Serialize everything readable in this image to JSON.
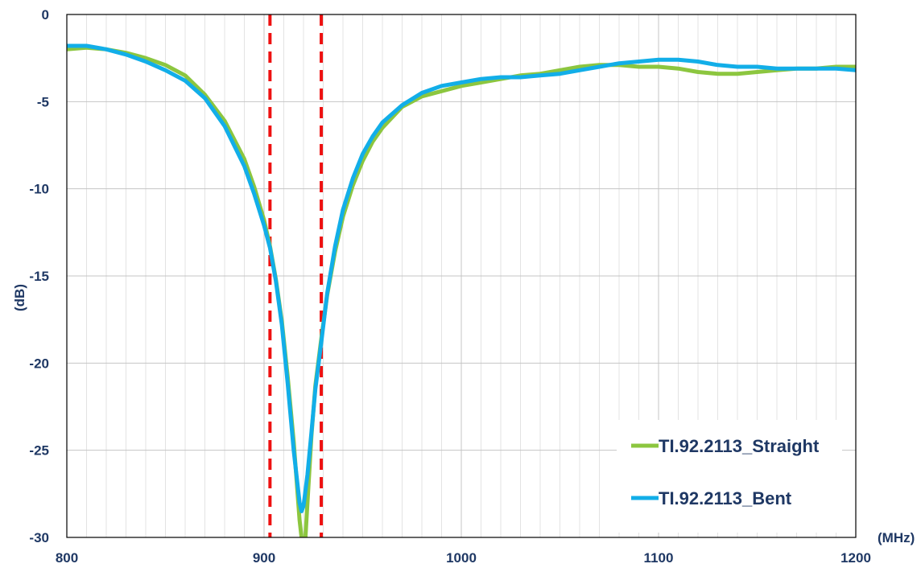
{
  "chart_data": {
    "type": "line",
    "title": "",
    "xlabel": "(MHz)",
    "ylabel": "(dB)",
    "xlim": [
      800,
      1200
    ],
    "ylim": [
      -30,
      0
    ],
    "x_ticks": [
      800,
      900,
      1000,
      1100,
      1200
    ],
    "y_ticks": [
      0,
      -5,
      -10,
      -15,
      -20,
      -25,
      -30
    ],
    "x_minor_step": 10,
    "grid": true,
    "legend_position": "bottom-right",
    "markers": {
      "color": "#ee1111",
      "style": "dashed",
      "x": [
        903,
        929
      ]
    },
    "series": [
      {
        "name": "TI.92.2113_Straight",
        "color": "#8cc63f",
        "x": [
          800,
          810,
          820,
          830,
          840,
          850,
          860,
          870,
          880,
          890,
          895,
          900,
          903,
          906,
          909,
          912,
          915,
          918,
          920,
          921,
          922,
          924,
          926,
          929,
          932,
          936,
          940,
          945,
          950,
          955,
          960,
          970,
          980,
          990,
          1000,
          1010,
          1020,
          1030,
          1040,
          1050,
          1060,
          1070,
          1080,
          1090,
          1100,
          1110,
          1120,
          1130,
          1140,
          1150,
          1160,
          1170,
          1180,
          1190,
          1200
        ],
        "y": [
          -2.0,
          -1.9,
          -2.0,
          -2.2,
          -2.5,
          -2.9,
          -3.5,
          -4.6,
          -6.1,
          -8.3,
          -9.9,
          -11.8,
          -13.3,
          -15.2,
          -17.6,
          -20.8,
          -24.5,
          -29.0,
          -31.0,
          -30.0,
          -28.0,
          -24.2,
          -21.3,
          -18.6,
          -16.1,
          -13.6,
          -11.6,
          -9.8,
          -8.4,
          -7.3,
          -6.5,
          -5.3,
          -4.7,
          -4.4,
          -4.1,
          -3.9,
          -3.7,
          -3.5,
          -3.4,
          -3.2,
          -3.0,
          -2.9,
          -2.9,
          -3.0,
          -3.0,
          -3.1,
          -3.3,
          -3.4,
          -3.4,
          -3.3,
          -3.2,
          -3.1,
          -3.1,
          -3.0,
          -3.0
        ]
      },
      {
        "name": "TI.92.2113_Bent",
        "color": "#12aee8",
        "x": [
          800,
          810,
          820,
          830,
          840,
          850,
          860,
          870,
          880,
          890,
          895,
          900,
          903,
          906,
          909,
          912,
          915,
          918,
          919,
          920,
          922,
          924,
          926,
          929,
          932,
          936,
          940,
          945,
          950,
          955,
          960,
          970,
          980,
          990,
          1000,
          1010,
          1020,
          1030,
          1040,
          1050,
          1060,
          1070,
          1080,
          1090,
          1100,
          1110,
          1120,
          1130,
          1140,
          1150,
          1160,
          1170,
          1180,
          1190,
          1200
        ],
        "y": [
          -1.8,
          -1.8,
          -2.0,
          -2.3,
          -2.7,
          -3.2,
          -3.8,
          -4.8,
          -6.4,
          -8.7,
          -10.3,
          -12.1,
          -13.4,
          -15.3,
          -17.8,
          -21.2,
          -25.0,
          -28.0,
          -28.5,
          -28.2,
          -26.4,
          -24.0,
          -21.5,
          -18.8,
          -16.0,
          -13.3,
          -11.2,
          -9.4,
          -8.0,
          -7.0,
          -6.2,
          -5.2,
          -4.5,
          -4.1,
          -3.9,
          -3.7,
          -3.6,
          -3.6,
          -3.5,
          -3.4,
          -3.2,
          -3.0,
          -2.8,
          -2.7,
          -2.6,
          -2.6,
          -2.7,
          -2.9,
          -3.0,
          -3.0,
          -3.1,
          -3.1,
          -3.1,
          -3.1,
          -3.2
        ]
      }
    ]
  }
}
